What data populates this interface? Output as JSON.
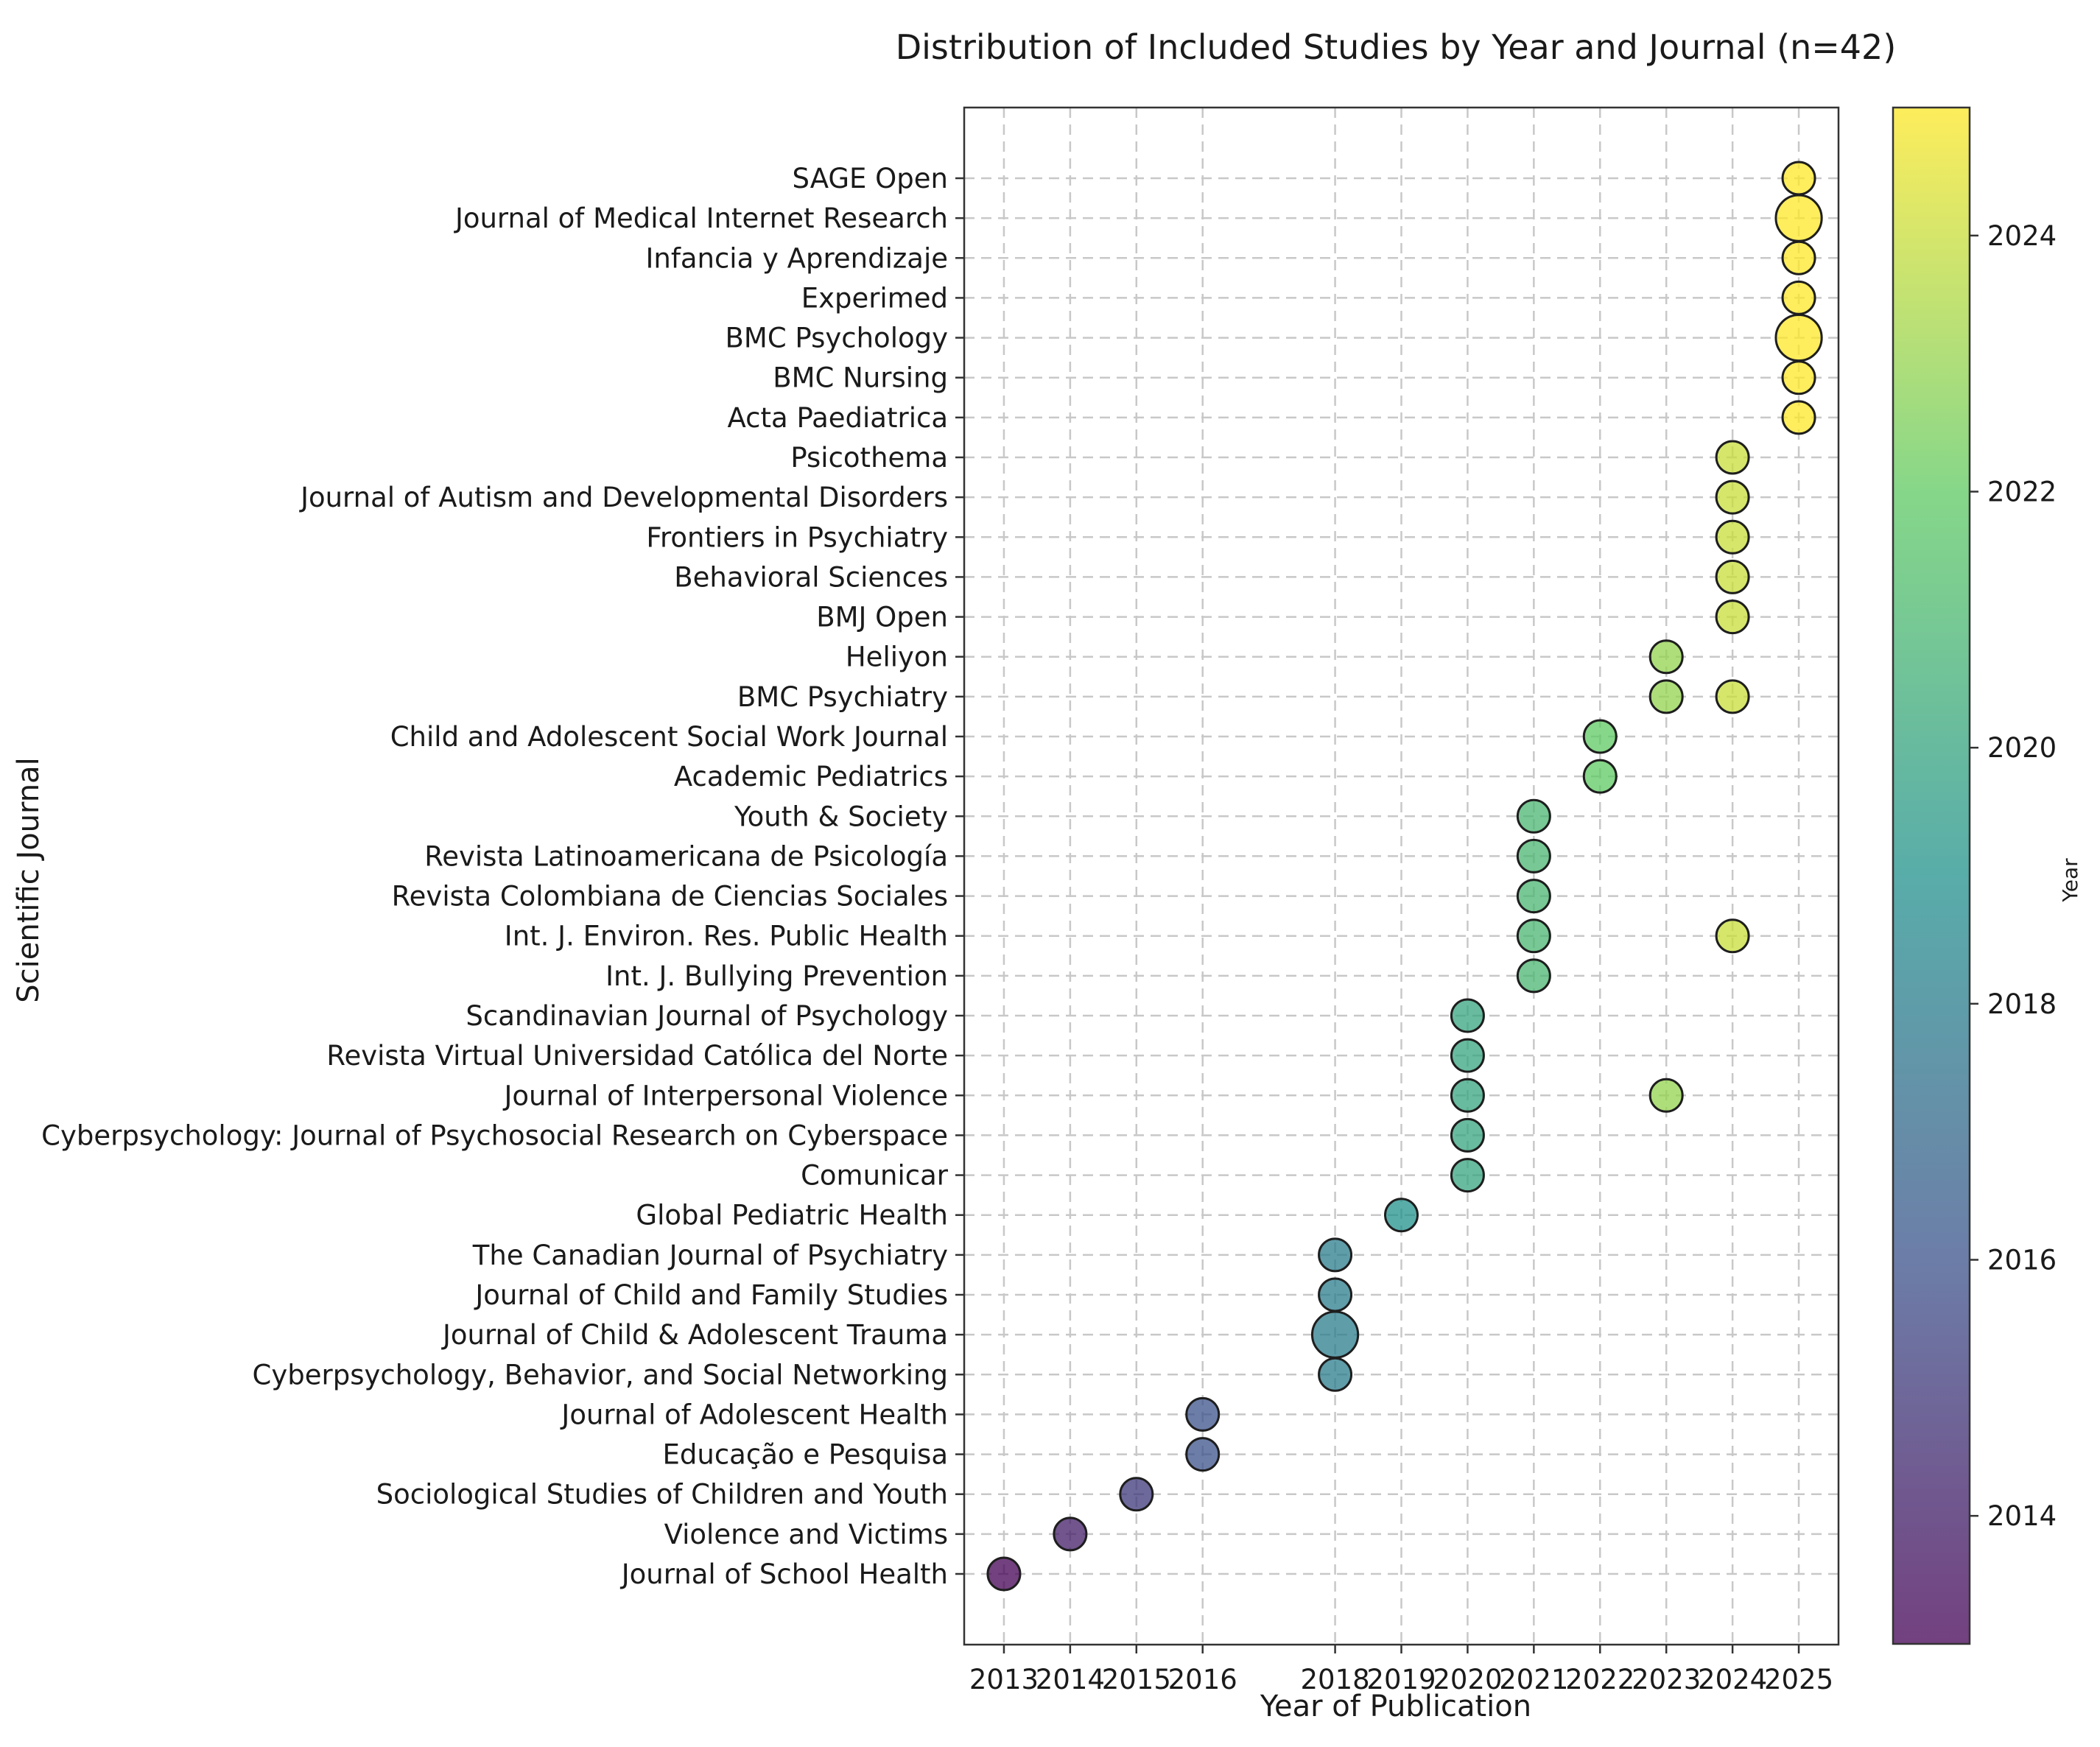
{
  "chart_data": {
    "type": "scatter",
    "title": "Distribution of Included Studies by Year and Journal (n=42)",
    "xlabel": "Year of Publication",
    "ylabel": "Scientific Journal",
    "x_ticks": [
      2013,
      2014,
      2015,
      2016,
      2018,
      2019,
      2020,
      2021,
      2022,
      2023,
      2024,
      2025
    ],
    "xlim": [
      2012.4,
      2025.6
    ],
    "grid": true,
    "journals": [
      "Journal of School Health",
      "Violence and Victims",
      "Sociological Studies of Children and Youth",
      "Educação e Pesquisa",
      "Journal of Adolescent Health",
      "Cyberpsychology, Behavior, and Social Networking",
      "Journal of Child & Adolescent Trauma",
      "Journal of Child and Family Studies",
      "The Canadian Journal of Psychiatry",
      "Global Pediatric Health",
      "Comunicar",
      "Cyberpsychology: Journal of Psychosocial Research on Cyberspace",
      "Journal of Interpersonal Violence",
      "Revista Virtual Universidad Católica del Norte",
      "Scandinavian Journal of Psychology",
      "Int. J. Bullying Prevention",
      "Int. J. Environ. Res. Public Health",
      "Revista Colombiana de Ciencias Sociales",
      "Revista Latinoamericana de Psicología",
      "Youth & Society",
      "Academic Pediatrics",
      "Child and Adolescent Social Work Journal",
      "BMC Psychiatry",
      "Heliyon",
      "BMJ Open",
      "Behavioral Sciences",
      "Frontiers in Psychiatry",
      "Journal of Autism and Developmental Disorders",
      "Psicothema",
      "Acta Paediatrica",
      "BMC Nursing",
      "BMC Psychology",
      "Experimed",
      "Infancia y Aprendizaje",
      "Journal of Medical Internet Research",
      "SAGE Open"
    ],
    "points": [
      {
        "journal": "Journal of School Health",
        "year": 2013,
        "count": 1
      },
      {
        "journal": "Violence and Victims",
        "year": 2014,
        "count": 1
      },
      {
        "journal": "Sociological Studies of Children and Youth",
        "year": 2015,
        "count": 1
      },
      {
        "journal": "Educação e Pesquisa",
        "year": 2016,
        "count": 1
      },
      {
        "journal": "Journal of Adolescent Health",
        "year": 2016,
        "count": 1
      },
      {
        "journal": "Cyberpsychology, Behavior, and Social Networking",
        "year": 2018,
        "count": 1
      },
      {
        "journal": "Journal of Child & Adolescent Trauma",
        "year": 2018,
        "count": 2
      },
      {
        "journal": "Journal of Child and Family Studies",
        "year": 2018,
        "count": 1
      },
      {
        "journal": "The Canadian Journal of Psychiatry",
        "year": 2018,
        "count": 1
      },
      {
        "journal": "Global Pediatric Health",
        "year": 2019,
        "count": 1
      },
      {
        "journal": "Comunicar",
        "year": 2020,
        "count": 1
      },
      {
        "journal": "Cyberpsychology: Journal of Psychosocial Research on Cyberspace",
        "year": 2020,
        "count": 1
      },
      {
        "journal": "Journal of Interpersonal Violence",
        "year": 2020,
        "count": 1
      },
      {
        "journal": "Revista Virtual Universidad Católica del Norte",
        "year": 2020,
        "count": 1
      },
      {
        "journal": "Scandinavian Journal of Psychology",
        "year": 2020,
        "count": 1
      },
      {
        "journal": "Int. J. Bullying Prevention",
        "year": 2021,
        "count": 1
      },
      {
        "journal": "Int. J. Environ. Res. Public Health",
        "year": 2021,
        "count": 1
      },
      {
        "journal": "Revista Colombiana de Ciencias Sociales",
        "year": 2021,
        "count": 1
      },
      {
        "journal": "Revista Latinoamericana de Psicología",
        "year": 2021,
        "count": 1
      },
      {
        "journal": "Youth & Society",
        "year": 2021,
        "count": 1
      },
      {
        "journal": "Academic Pediatrics",
        "year": 2022,
        "count": 1
      },
      {
        "journal": "Child and Adolescent Social Work Journal",
        "year": 2022,
        "count": 1
      },
      {
        "journal": "BMC Psychiatry",
        "year": 2023,
        "count": 1
      },
      {
        "journal": "Heliyon",
        "year": 2023,
        "count": 1
      },
      {
        "journal": "Journal of Interpersonal Violence",
        "year": 2023,
        "count": 1
      },
      {
        "journal": "BMC Psychiatry",
        "year": 2024,
        "count": 1
      },
      {
        "journal": "BMJ Open",
        "year": 2024,
        "count": 1
      },
      {
        "journal": "Behavioral Sciences",
        "year": 2024,
        "count": 1
      },
      {
        "journal": "Frontiers in Psychiatry",
        "year": 2024,
        "count": 1
      },
      {
        "journal": "Journal of Autism and Developmental Disorders",
        "year": 2024,
        "count": 1
      },
      {
        "journal": "Psicothema",
        "year": 2024,
        "count": 1
      },
      {
        "journal": "Int. J. Environ. Res. Public Health",
        "year": 2024,
        "count": 1
      },
      {
        "journal": "Acta Paediatrica",
        "year": 2025,
        "count": 1
      },
      {
        "journal": "BMC Nursing",
        "year": 2025,
        "count": 1
      },
      {
        "journal": "BMC Psychology",
        "year": 2025,
        "count": 2
      },
      {
        "journal": "Experimed",
        "year": 2025,
        "count": 1
      },
      {
        "journal": "Infancia y Aprendizaje",
        "year": 2025,
        "count": 1
      },
      {
        "journal": "Journal of Medical Internet Research",
        "year": 2025,
        "count": 2
      },
      {
        "journal": "SAGE Open",
        "year": 2025,
        "count": 1
      }
    ],
    "colorbar": {
      "label": "Year",
      "range": [
        2013,
        2025
      ],
      "ticks": [
        2014,
        2016,
        2018,
        2020,
        2022,
        2024
      ],
      "colormap": [
        "#440154",
        "#3b528b",
        "#21918c",
        "#5ec962",
        "#fde725"
      ]
    }
  }
}
